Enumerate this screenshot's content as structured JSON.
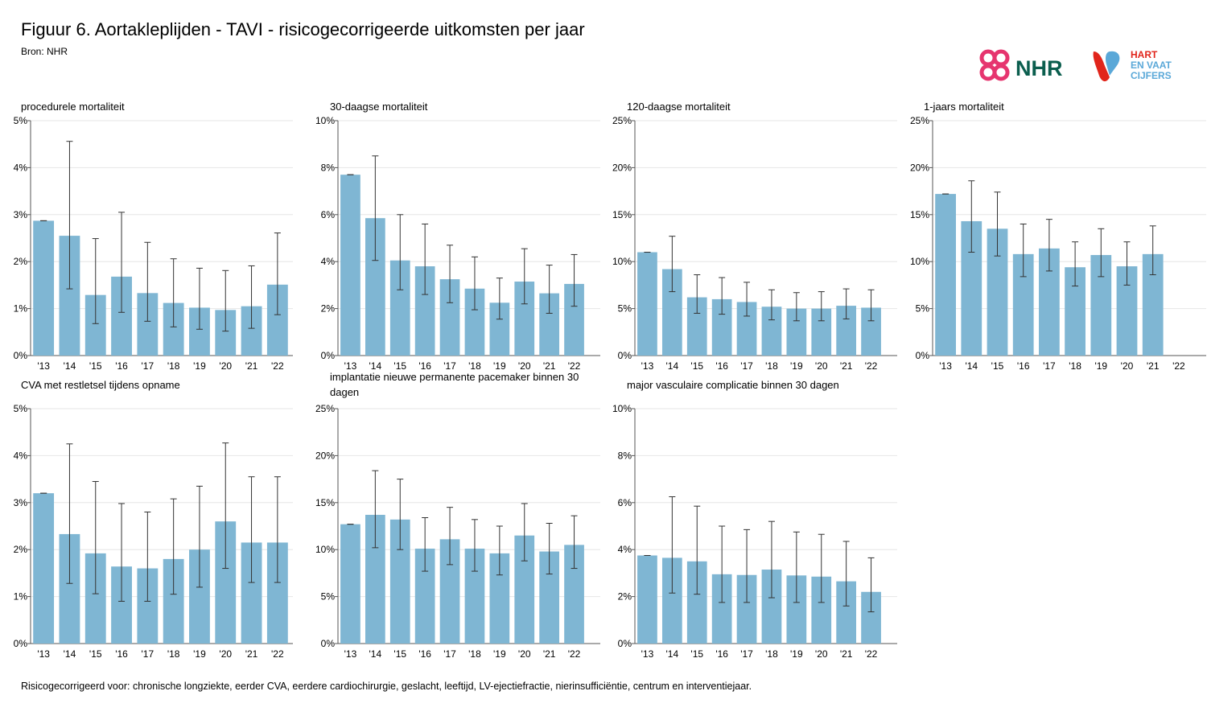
{
  "title": "Figuur 6. Aortakleplijden - TAVI - risicogecorrigeerde uitkomsten per jaar",
  "source": "Bron: NHR",
  "footnote": "Risicogecorrigeerd voor: chronische longziekte, eerder CVA, eerdere cardiochirurgie, geslacht, leeftijd, LV-ejectiefractie, nierinsufficiëntie, centrum en interventiejaar.",
  "logos": {
    "nhr": "NHR",
    "hvc": [
      "HART",
      "EN VAAT",
      "CIJFERS"
    ]
  },
  "colors": {
    "bar": "#7fb6d3",
    "error": "#333333",
    "axis": "#555555",
    "grid": "#e6e6e6",
    "nhr_pink": "#e6356f",
    "nhr_green": "#0b5e4e",
    "hvc_red": "#e1251b",
    "hvc_blue": "#5aa8d8"
  },
  "chart_data": [
    {
      "type": "bar",
      "title": "procedurele mortaliteit",
      "categories": [
        "'13",
        "'14",
        "'15",
        "'16",
        "'17",
        "'18",
        "'19",
        "'20",
        "'21",
        "'22"
      ],
      "values": [
        2.87,
        2.55,
        1.29,
        1.68,
        1.33,
        1.12,
        1.02,
        0.97,
        1.05,
        1.51
      ],
      "error_low": [
        2.87,
        1.42,
        0.68,
        0.92,
        0.73,
        0.61,
        0.56,
        0.52,
        0.58,
        0.87
      ],
      "error_high": [
        2.87,
        4.56,
        2.49,
        3.05,
        2.41,
        2.06,
        1.86,
        1.81,
        1.91,
        2.61
      ],
      "ylim": [
        0,
        5
      ],
      "yticks": [
        "0%",
        "1%",
        "2%",
        "3%",
        "4%",
        "5%"
      ]
    },
    {
      "type": "bar",
      "title": "30-daagse mortaliteit",
      "categories": [
        "'13",
        "'14",
        "'15",
        "'16",
        "'17",
        "'18",
        "'19",
        "'20",
        "'21",
        "'22"
      ],
      "values": [
        7.7,
        5.85,
        4.05,
        3.8,
        3.25,
        2.85,
        2.25,
        3.15,
        2.65,
        3.05
      ],
      "error_low": [
        7.7,
        4.05,
        2.8,
        2.6,
        2.25,
        1.95,
        1.55,
        2.2,
        1.8,
        2.1
      ],
      "error_high": [
        7.7,
        8.5,
        6.0,
        5.6,
        4.7,
        4.2,
        3.3,
        4.55,
        3.85,
        4.3
      ],
      "ylim": [
        0,
        10
      ],
      "yticks": [
        "0%",
        "2%",
        "4%",
        "6%",
        "8%",
        "10%"
      ]
    },
    {
      "type": "bar",
      "title": "120-daagse mortaliteit",
      "categories": [
        "'13",
        "'14",
        "'15",
        "'16",
        "'17",
        "'18",
        "'19",
        "'20",
        "'21",
        "'22"
      ],
      "values": [
        11.0,
        9.2,
        6.2,
        6.0,
        5.7,
        5.2,
        5.0,
        5.0,
        5.3,
        5.1
      ],
      "error_low": [
        11.0,
        6.8,
        4.5,
        4.4,
        4.2,
        3.8,
        3.7,
        3.7,
        3.9,
        3.7
      ],
      "error_high": [
        11.0,
        12.7,
        8.6,
        8.3,
        7.8,
        7.0,
        6.7,
        6.8,
        7.1,
        7.0
      ],
      "ylim": [
        0,
        25
      ],
      "yticks": [
        "0%",
        "5%",
        "10%",
        "15%",
        "20%",
        "25%"
      ]
    },
    {
      "type": "bar",
      "title": "1-jaars mortaliteit",
      "categories": [
        "'13",
        "'14",
        "'15",
        "'16",
        "'17",
        "'18",
        "'19",
        "'20",
        "'21",
        "'22"
      ],
      "values": [
        17.2,
        14.3,
        13.5,
        10.8,
        11.4,
        9.4,
        10.7,
        9.5,
        10.8,
        null
      ],
      "error_low": [
        17.2,
        11.0,
        10.6,
        8.4,
        9.0,
        7.4,
        8.4,
        7.5,
        8.6,
        null
      ],
      "error_high": [
        17.2,
        18.6,
        17.4,
        14.0,
        14.5,
        12.1,
        13.5,
        12.1,
        13.8,
        null
      ],
      "ylim": [
        0,
        25
      ],
      "yticks": [
        "0%",
        "5%",
        "10%",
        "15%",
        "20%",
        "25%"
      ]
    },
    {
      "type": "bar",
      "title": "CVA met restletsel tijdens opname",
      "categories": [
        "'13",
        "'14",
        "'15",
        "'16",
        "'17",
        "'18",
        "'19",
        "'20",
        "'21",
        "'22"
      ],
      "values": [
        3.2,
        2.33,
        1.92,
        1.64,
        1.6,
        1.8,
        2.0,
        2.6,
        2.15,
        2.15
      ],
      "error_low": [
        3.2,
        1.28,
        1.06,
        0.9,
        0.9,
        1.05,
        1.2,
        1.6,
        1.3,
        1.3
      ],
      "error_high": [
        3.2,
        4.25,
        3.45,
        2.98,
        2.8,
        3.08,
        3.35,
        4.27,
        3.55,
        3.55
      ],
      "ylim": [
        0,
        5
      ],
      "yticks": [
        "0%",
        "1%",
        "2%",
        "3%",
        "4%",
        "5%"
      ]
    },
    {
      "type": "bar",
      "title": "implantatie nieuwe permanente pacemaker binnen 30 dagen",
      "title_lines": [
        "implantatie nieuwe permanente pacemaker binnen 30",
        "dagen"
      ],
      "categories": [
        "'13",
        "'14",
        "'15",
        "'16",
        "'17",
        "'18",
        "'19",
        "'20",
        "'21",
        "'22"
      ],
      "values": [
        12.7,
        13.7,
        13.2,
        10.1,
        11.1,
        10.1,
        9.6,
        11.5,
        9.8,
        10.5
      ],
      "error_low": [
        12.7,
        10.2,
        10.0,
        7.7,
        8.4,
        7.7,
        7.3,
        8.8,
        7.4,
        8.0
      ],
      "error_high": [
        12.7,
        18.4,
        17.5,
        13.4,
        14.5,
        13.2,
        12.5,
        14.9,
        12.8,
        13.6
      ],
      "ylim": [
        0,
        25
      ],
      "yticks": [
        "0%",
        "5%",
        "10%",
        "15%",
        "20%",
        "25%"
      ]
    },
    {
      "type": "bar",
      "title": "major vasculaire complicatie binnen 30 dagen",
      "categories": [
        "'13",
        "'14",
        "'15",
        "'16",
        "'17",
        "'18",
        "'19",
        "'20",
        "'21",
        "'22"
      ],
      "values": [
        3.75,
        3.65,
        3.5,
        2.95,
        2.92,
        3.15,
        2.9,
        2.85,
        2.65,
        2.2
      ],
      "error_low": [
        3.75,
        2.15,
        2.1,
        1.75,
        1.75,
        1.95,
        1.75,
        1.75,
        1.6,
        1.35
      ],
      "error_high": [
        3.75,
        6.25,
        5.85,
        5.0,
        4.85,
        5.2,
        4.75,
        4.65,
        4.35,
        3.65
      ],
      "ylim": [
        0,
        10
      ],
      "yticks": [
        "0%",
        "2%",
        "4%",
        "6%",
        "8%",
        "10%"
      ]
    }
  ]
}
